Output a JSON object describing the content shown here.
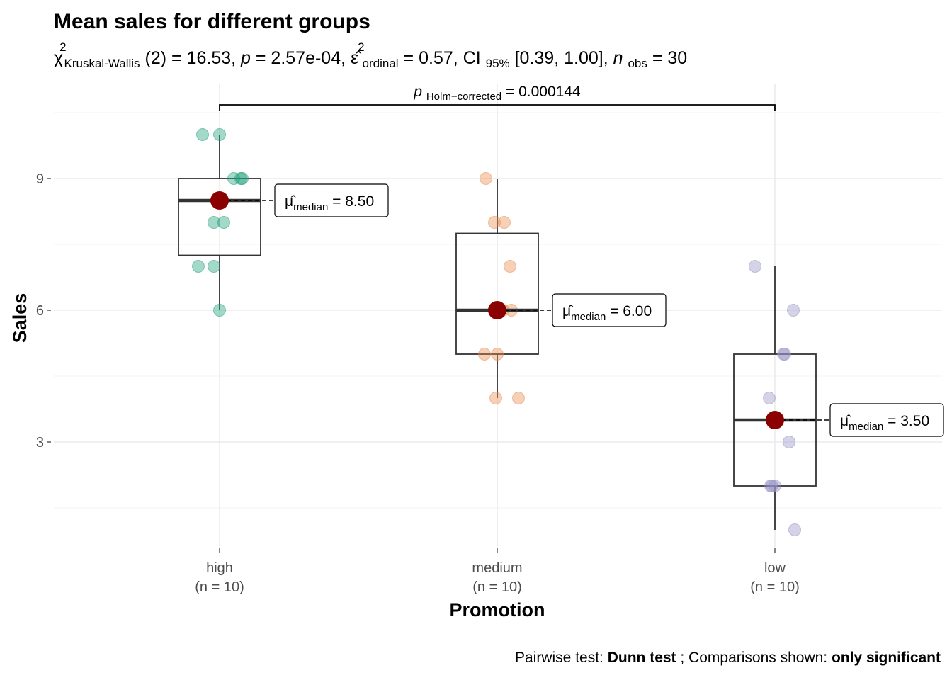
{
  "title": "Mean sales for different groups",
  "subtitle": {
    "stat_symbol": "χ",
    "stat_sup": "2",
    "stat_sub": "Kruskal-Wallis",
    "df": "(2)",
    "stat_value": " = 16.53, ",
    "p_symbol": "p",
    "p_value": " = 2.57e-04, ",
    "es_symbol": "ε̂",
    "es_sup": "2",
    "es_sub": "ordinal",
    "es_value": " = 0.57, CI",
    "ci_sub": "95%",
    "ci_value": " [0.39, 1.00], ",
    "n_symbol": "n",
    "n_sub": "obs",
    "n_value": " = 30"
  },
  "pairwise": {
    "p_symbol": "p",
    "p_sub": "Holm−corrected",
    "p_value": " = 0.000144"
  },
  "caption": {
    "part1": "Pairwise test: ",
    "part2": "Dunn test",
    "part3": "; Comparisons shown: ",
    "part4": "only significant"
  },
  "chart_data": {
    "type": "box",
    "xlabel": "Promotion",
    "ylabel": "Sales",
    "ylim": [
      0.5,
      10.5
    ],
    "yticks": [
      3,
      6,
      9
    ],
    "grid": true,
    "categories": [
      "high",
      "medium",
      "low"
    ],
    "category_counts": [
      "(n = 10)",
      "(n = 10)",
      "(n = 10)"
    ],
    "colors": [
      "#1b9e77",
      "#e88a4a",
      "#9490c4"
    ],
    "median_point_color": "#8b0000",
    "groups": [
      {
        "name": "high",
        "n_label": "(n = 10)",
        "median": 8.5,
        "q1": 7.25,
        "q3": 9,
        "whisker_low": 6,
        "whisker_high": 10,
        "points": [
          10,
          10,
          9,
          9,
          9,
          8,
          8,
          7,
          7,
          6
        ],
        "median_label": "8.50"
      },
      {
        "name": "medium",
        "n_label": "(n = 10)",
        "median": 6,
        "q1": 5,
        "q3": 7.75,
        "whisker_low": 4,
        "whisker_high": 9,
        "points": [
          9,
          8,
          8,
          7,
          6,
          6,
          5,
          5,
          4,
          4
        ],
        "median_label": "6.00"
      },
      {
        "name": "low",
        "n_label": "(n = 10)",
        "median": 3.5,
        "q1": 2,
        "q3": 5,
        "whisker_low": 1,
        "whisker_high": 7,
        "points": [
          7,
          6,
          5,
          5,
          4,
          3,
          2,
          2,
          2,
          1
        ],
        "median_label": "3.50"
      }
    ],
    "median_label_prefix": "μ̂",
    "median_label_sub": "median",
    "median_label_eq": " = ",
    "comparisons": [
      {
        "from": "high",
        "to": "low",
        "y": 10.65
      }
    ]
  }
}
